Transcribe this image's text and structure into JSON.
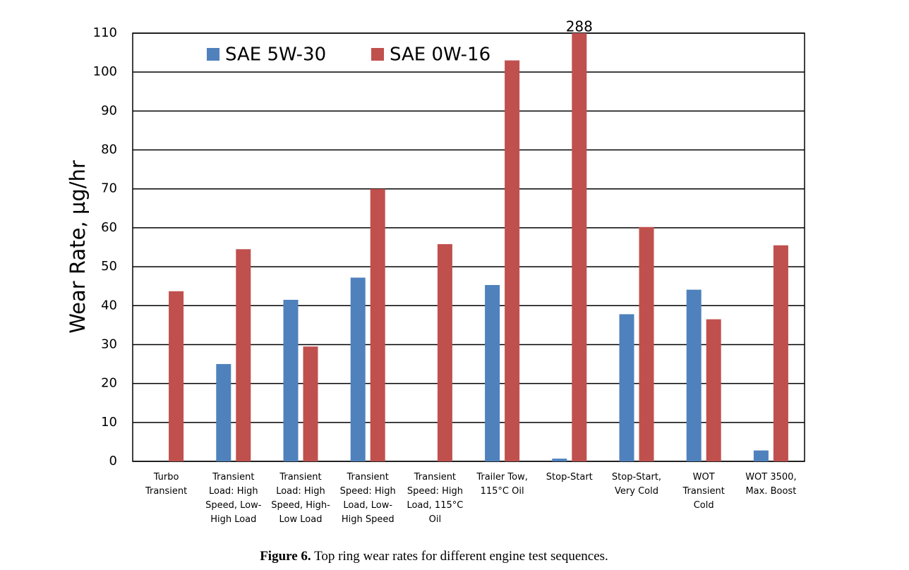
{
  "chart_data": {
    "type": "bar",
    "y_label": "Wear Rate, µg/hr",
    "categories": [
      "Turbo Transient",
      "Transient Load: High Speed, Low-High Load",
      "Transient Load: High Speed, High-Low Load",
      "Transient Speed: High Load, Low-High Speed",
      "Transient Speed: High Load, 115°C Oil",
      "Trailer Tow, 115°C Oil",
      "Stop-Start",
      "Stop-Start, Very Cold",
      "WOT Transient Cold",
      "WOT 3500, Max. Boost"
    ],
    "series": [
      {
        "name": "SAE 5W-30",
        "color": "#4f81bd",
        "values": [
          null,
          25,
          41.5,
          47.2,
          null,
          45.3,
          0.7,
          37.8,
          44.1,
          2.8
        ]
      },
      {
        "name": "SAE 0W-16",
        "color": "#c0504d",
        "values": [
          43.7,
          54.5,
          29.5,
          70,
          55.8,
          103,
          288,
          60.2,
          36.5,
          55.5
        ],
        "value_labels": [
          null,
          null,
          null,
          null,
          null,
          null,
          "288",
          null,
          null,
          null
        ]
      }
    ],
    "ylim": [
      0,
      110
    ],
    "yticks": [
      0,
      10,
      20,
      30,
      40,
      50,
      60,
      70,
      80,
      90,
      100,
      110
    ],
    "grid": true,
    "legend": "top",
    "caption_label": "Figure 6.",
    "caption": "Top ring wear rates for different engine test sequences."
  }
}
